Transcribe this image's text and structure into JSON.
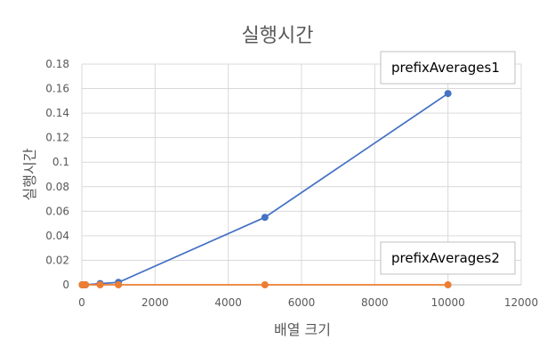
{
  "chart_data": {
    "type": "scatter",
    "title": "실행시간",
    "xlabel": "배열 크기",
    "ylabel": "실행시간",
    "xlim": [
      0,
      12000
    ],
    "ylim": [
      0,
      0.18
    ],
    "x_ticks": [
      "0",
      "2000",
      "4000",
      "6000",
      "8000",
      "10000",
      "12000"
    ],
    "y_ticks": [
      "0",
      "0.02",
      "0.04",
      "0.06",
      "0.08",
      "0.1",
      "0.12",
      "0.14",
      "0.16",
      "0.18"
    ],
    "grid": true,
    "series": [
      {
        "name": "prefixAverages1",
        "color": "#4472C4",
        "x": [
          10,
          50,
          100,
          500,
          1000,
          5000,
          10000
        ],
        "y": [
          0,
          0,
          0,
          0.001,
          0.002,
          0.055,
          0.156
        ]
      },
      {
        "name": "prefixAverages2",
        "color": "#ED7D31",
        "x": [
          10,
          50,
          100,
          500,
          1000,
          5000,
          10000
        ],
        "y": [
          0,
          0,
          0,
          0,
          0,
          0,
          0
        ]
      }
    ]
  }
}
